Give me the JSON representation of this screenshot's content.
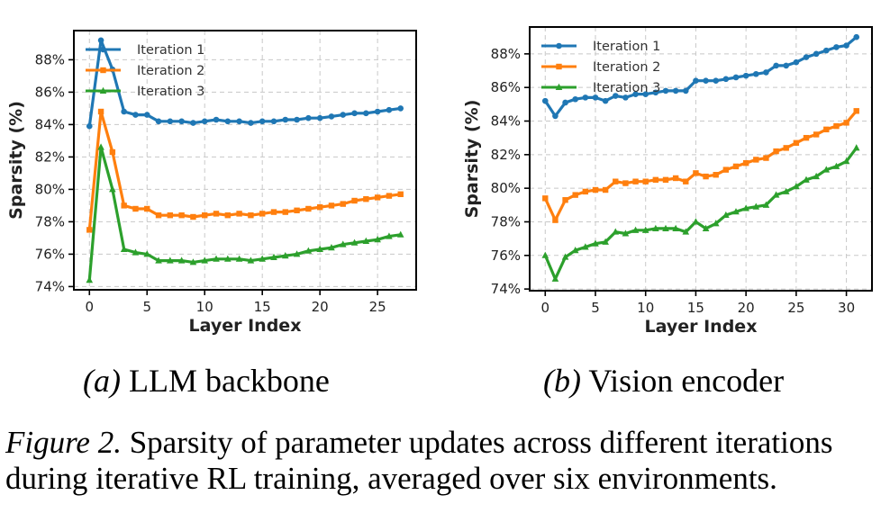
{
  "colors": {
    "Iteration 1": "#1f77b4",
    "Iteration 2": "#ff7f0e",
    "Iteration 3": "#2ca02c"
  },
  "subcaptions": {
    "a_prefix": "(a)",
    "a_text": "LLM backbone",
    "b_prefix": "(b)",
    "b_text": "Vision encoder"
  },
  "caption": {
    "label": "Figure 2.",
    "text": "Sparsity of parameter updates across different iterations during iterative RL training, averaged over six environments."
  },
  "chart_data": [
    {
      "type": "line",
      "xlabel": "Layer Index",
      "ylabel": "Sparsity (%)",
      "xlim": [
        -1.35,
        28.35
      ],
      "ylim": [
        73.8,
        89.8
      ],
      "xticks": [
        0,
        5,
        10,
        15,
        20,
        25
      ],
      "yticks": [
        74,
        76,
        78,
        80,
        82,
        84,
        86,
        88
      ],
      "ytick_labels": [
        "74%",
        "76%",
        "78%",
        "80%",
        "82%",
        "84%",
        "86%",
        "88%"
      ],
      "grid": true,
      "legend": "upper-left",
      "x": [
        0,
        1,
        2,
        3,
        4,
        5,
        6,
        7,
        8,
        9,
        10,
        11,
        12,
        13,
        14,
        15,
        16,
        17,
        18,
        19,
        20,
        21,
        22,
        23,
        24,
        25,
        26,
        27
      ],
      "series": [
        {
          "name": "Iteration 1",
          "marker": "circle",
          "values": [
            83.9,
            89.2,
            87.4,
            84.8,
            84.6,
            84.6,
            84.2,
            84.2,
            84.2,
            84.1,
            84.2,
            84.3,
            84.2,
            84.2,
            84.1,
            84.2,
            84.2,
            84.3,
            84.3,
            84.4,
            84.4,
            84.5,
            84.6,
            84.7,
            84.7,
            84.8,
            84.9,
            85.0
          ]
        },
        {
          "name": "Iteration 2",
          "marker": "square",
          "values": [
            77.5,
            84.8,
            82.3,
            79.0,
            78.8,
            78.8,
            78.4,
            78.4,
            78.4,
            78.3,
            78.4,
            78.5,
            78.4,
            78.5,
            78.4,
            78.5,
            78.6,
            78.6,
            78.7,
            78.8,
            78.9,
            79.0,
            79.1,
            79.3,
            79.4,
            79.5,
            79.6,
            79.7
          ]
        },
        {
          "name": "Iteration 3",
          "marker": "triangle",
          "values": [
            74.4,
            82.6,
            80.0,
            76.3,
            76.1,
            76.0,
            75.6,
            75.6,
            75.6,
            75.5,
            75.6,
            75.7,
            75.7,
            75.7,
            75.6,
            75.7,
            75.8,
            75.9,
            76.0,
            76.2,
            76.3,
            76.4,
            76.6,
            76.7,
            76.8,
            76.9,
            77.1,
            77.2
          ]
        }
      ]
    },
    {
      "type": "line",
      "xlabel": "Layer Index",
      "ylabel": "Sparsity (%)",
      "xlim": [
        -1.55,
        32.55
      ],
      "ylim": [
        73.9,
        89.6
      ],
      "xticks": [
        0,
        5,
        10,
        15,
        20,
        25,
        30
      ],
      "yticks": [
        74,
        76,
        78,
        80,
        82,
        84,
        86,
        88
      ],
      "ytick_labels": [
        "74%",
        "76%",
        "78%",
        "80%",
        "82%",
        "84%",
        "86%",
        "88%"
      ],
      "grid": true,
      "legend": "upper-left",
      "x": [
        0,
        1,
        2,
        3,
        4,
        5,
        6,
        7,
        8,
        9,
        10,
        11,
        12,
        13,
        14,
        15,
        16,
        17,
        18,
        19,
        20,
        21,
        22,
        23,
        24,
        25,
        26,
        27,
        28,
        29,
        30,
        31
      ],
      "series": [
        {
          "name": "Iteration 1",
          "marker": "circle",
          "values": [
            85.2,
            84.3,
            85.1,
            85.3,
            85.4,
            85.4,
            85.2,
            85.5,
            85.4,
            85.6,
            85.6,
            85.7,
            85.8,
            85.8,
            85.8,
            86.4,
            86.4,
            86.4,
            86.5,
            86.6,
            86.7,
            86.8,
            86.9,
            87.3,
            87.3,
            87.5,
            87.8,
            88.0,
            88.2,
            88.4,
            88.5,
            89.0
          ]
        },
        {
          "name": "Iteration 2",
          "marker": "square",
          "values": [
            79.4,
            78.1,
            79.3,
            79.6,
            79.8,
            79.9,
            79.9,
            80.4,
            80.3,
            80.4,
            80.4,
            80.5,
            80.5,
            80.6,
            80.4,
            80.9,
            80.7,
            80.8,
            81.1,
            81.3,
            81.5,
            81.7,
            81.8,
            82.2,
            82.4,
            82.7,
            83.0,
            83.2,
            83.5,
            83.7,
            83.9,
            84.6
          ]
        },
        {
          "name": "Iteration 3",
          "marker": "triangle",
          "values": [
            76.0,
            74.6,
            75.9,
            76.3,
            76.5,
            76.7,
            76.8,
            77.4,
            77.3,
            77.5,
            77.5,
            77.6,
            77.6,
            77.6,
            77.4,
            78.0,
            77.6,
            77.9,
            78.4,
            78.6,
            78.8,
            78.9,
            79.0,
            79.6,
            79.8,
            80.1,
            80.5,
            80.7,
            81.1,
            81.3,
            81.6,
            82.4
          ]
        }
      ]
    }
  ]
}
